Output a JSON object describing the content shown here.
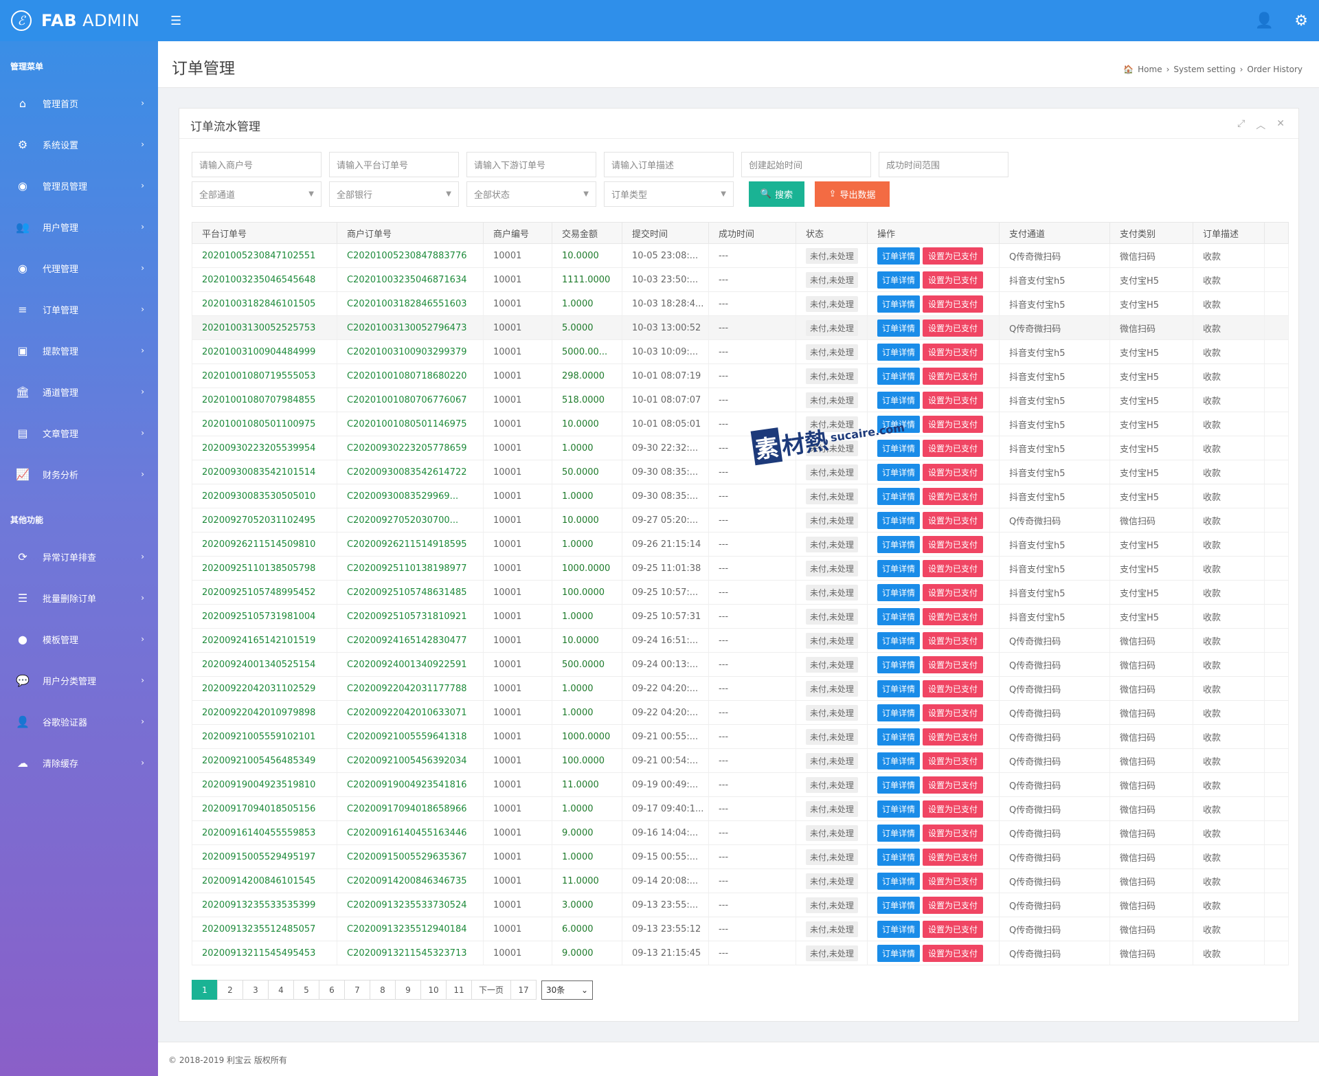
{
  "topbar": {
    "brand_bold": "FAB",
    "brand_rest": " ADMIN",
    "logo_glyph": "ℰ",
    "menu_icon": "☰",
    "user_icon": "👤",
    "settings_icon": "⚙"
  },
  "sidebar": {
    "section_main": "管理菜单",
    "section_other": "其他功能",
    "items": [
      {
        "label": "管理首页",
        "icon": "⌂"
      },
      {
        "label": "系统设置",
        "icon": "⚙"
      },
      {
        "label": "管理员管理",
        "icon": "◉"
      },
      {
        "label": "用户管理",
        "icon": "👥"
      },
      {
        "label": "代理管理",
        "icon": "◉"
      },
      {
        "label": "订单管理",
        "icon": "≡"
      },
      {
        "label": "提款管理",
        "icon": "▣"
      },
      {
        "label": "通道管理",
        "icon": "🏛"
      },
      {
        "label": "文章管理",
        "icon": "▤"
      },
      {
        "label": "财务分析",
        "icon": "📈"
      }
    ],
    "other_items": [
      {
        "label": "异常订单排查",
        "icon": "⟳"
      },
      {
        "label": "批量删除订单",
        "icon": "☰"
      },
      {
        "label": "模板管理",
        "icon": "●"
      },
      {
        "label": "用户分类管理",
        "icon": "💬"
      },
      {
        "label": "谷歌验证器",
        "icon": "👤"
      },
      {
        "label": "清除缓存",
        "icon": "☁"
      }
    ],
    "chevron": "›"
  },
  "page": {
    "title": "订单管理",
    "breadcrumb": [
      "Home",
      "System setting",
      "Order History"
    ],
    "breadcrumb_sep": "›",
    "breadcrumb_icon": "🏠"
  },
  "card": {
    "title": "订单流水管理",
    "tools": [
      "⤢",
      "︿",
      "✕"
    ]
  },
  "filters": {
    "inputs": [
      "请输入商户号",
      "请输入平台订单号",
      "请输入下游订单号",
      "请输入订单描述",
      "创建起始时间",
      "成功时间范围"
    ],
    "selects": [
      "全部通道",
      "全部银行",
      "全部状态",
      "订单类型"
    ],
    "search_label": "搜索",
    "export_label": "导出数据"
  },
  "table": {
    "headers": [
      "平台订单号",
      "商户订单号",
      "商户编号",
      "交易金额",
      "提交时间",
      "成功时间",
      "状态",
      "操作",
      "支付通道",
      "支付类别",
      "订单描述"
    ],
    "status_label": "未付,未处理",
    "detail_label": "订单详情",
    "paid_label": "设置为已支付",
    "rows": [
      [
        "20201005230847102551",
        "C20201005230847883776",
        "10001",
        "10.0000",
        "10-05 23:08:...",
        "---",
        "Q传奇微扫码",
        "微信扫码",
        "收款"
      ],
      [
        "20201003235046545648",
        "C20201003235046871634",
        "10001",
        "1111.0000",
        "10-03 23:50:...",
        "---",
        "抖音支付宝h5",
        "支付宝H5",
        "收款"
      ],
      [
        "20201003182846101505",
        "C20201003182846551603",
        "10001",
        "1.0000",
        "10-03 18:28:4...",
        "---",
        "抖音支付宝h5",
        "支付宝H5",
        "收款"
      ],
      [
        "20201003130052525753",
        "C20201003130052796473",
        "10001",
        "5.0000",
        "10-03 13:00:52",
        "---",
        "Q传奇微扫码",
        "微信扫码",
        "收款"
      ],
      [
        "20201003100904484999",
        "C20201003100903299379",
        "10001",
        "5000.00...",
        "10-03 10:09:...",
        "---",
        "抖音支付宝h5",
        "支付宝H5",
        "收款"
      ],
      [
        "20201001080719555053",
        "C20201001080718680220",
        "10001",
        "298.0000",
        "10-01 08:07:19",
        "---",
        "抖音支付宝h5",
        "支付宝H5",
        "收款"
      ],
      [
        "20201001080707984855",
        "C20201001080706776067",
        "10001",
        "518.0000",
        "10-01 08:07:07",
        "---",
        "抖音支付宝h5",
        "支付宝H5",
        "收款"
      ],
      [
        "20201001080501100975",
        "C20201001080501146975",
        "10001",
        "10.0000",
        "10-01 08:05:01",
        "---",
        "抖音支付宝h5",
        "支付宝H5",
        "收款"
      ],
      [
        "20200930223205539954",
        "C20200930223205778659",
        "10001",
        "1.0000",
        "09-30 22:32:...",
        "---",
        "抖音支付宝h5",
        "支付宝H5",
        "收款"
      ],
      [
        "20200930083542101514",
        "C20200930083542614722",
        "10001",
        "50.0000",
        "09-30 08:35:...",
        "---",
        "抖音支付宝h5",
        "支付宝H5",
        "收款"
      ],
      [
        "20200930083530505010",
        "C20200930083529969...",
        "10001",
        "1.0000",
        "09-30 08:35:...",
        "---",
        "抖音支付宝h5",
        "支付宝H5",
        "收款"
      ],
      [
        "20200927052031102495",
        "C20200927052030700...",
        "10001",
        "10.0000",
        "09-27 05:20:...",
        "---",
        "Q传奇微扫码",
        "微信扫码",
        "收款"
      ],
      [
        "20200926211514509810",
        "C20200926211514918595",
        "10001",
        "1.0000",
        "09-26 21:15:14",
        "---",
        "抖音支付宝h5",
        "支付宝H5",
        "收款"
      ],
      [
        "20200925110138505798",
        "C20200925110138198977",
        "10001",
        "1000.0000",
        "09-25 11:01:38",
        "---",
        "抖音支付宝h5",
        "支付宝H5",
        "收款"
      ],
      [
        "20200925105748995452",
        "C20200925105748631485",
        "10001",
        "100.0000",
        "09-25 10:57:...",
        "---",
        "抖音支付宝h5",
        "支付宝H5",
        "收款"
      ],
      [
        "20200925105731981004",
        "C20200925105731810921",
        "10001",
        "1.0000",
        "09-25 10:57:31",
        "---",
        "抖音支付宝h5",
        "支付宝H5",
        "收款"
      ],
      [
        "20200924165142101519",
        "C20200924165142830477",
        "10001",
        "10.0000",
        "09-24 16:51:...",
        "---",
        "Q传奇微扫码",
        "微信扫码",
        "收款"
      ],
      [
        "20200924001340525154",
        "C20200924001340922591",
        "10001",
        "500.0000",
        "09-24 00:13:...",
        "---",
        "Q传奇微扫码",
        "微信扫码",
        "收款"
      ],
      [
        "20200922042031102529",
        "C20200922042031177788",
        "10001",
        "1.0000",
        "09-22 04:20:...",
        "---",
        "Q传奇微扫码",
        "微信扫码",
        "收款"
      ],
      [
        "20200922042010979898",
        "C20200922042010633071",
        "10001",
        "1.0000",
        "09-22 04:20:...",
        "---",
        "Q传奇微扫码",
        "微信扫码",
        "收款"
      ],
      [
        "20200921005559102101",
        "C20200921005559641318",
        "10001",
        "1000.0000",
        "09-21 00:55:...",
        "---",
        "Q传奇微扫码",
        "微信扫码",
        "收款"
      ],
      [
        "20200921005456485349",
        "C20200921005456392034",
        "10001",
        "100.0000",
        "09-21 00:54:...",
        "---",
        "Q传奇微扫码",
        "微信扫码",
        "收款"
      ],
      [
        "20200919004923519810",
        "C20200919004923541816",
        "10001",
        "11.0000",
        "09-19 00:49:...",
        "---",
        "Q传奇微扫码",
        "微信扫码",
        "收款"
      ],
      [
        "20200917094018505156",
        "C20200917094018658966",
        "10001",
        "1.0000",
        "09-17 09:40:1...",
        "---",
        "Q传奇微扫码",
        "微信扫码",
        "收款"
      ],
      [
        "20200916140455559853",
        "C20200916140455163446",
        "10001",
        "9.0000",
        "09-16 14:04:...",
        "---",
        "Q传奇微扫码",
        "微信扫码",
        "收款"
      ],
      [
        "20200915005529495197",
        "C20200915005529635367",
        "10001",
        "1.0000",
        "09-15 00:55:...",
        "---",
        "Q传奇微扫码",
        "微信扫码",
        "收款"
      ],
      [
        "20200914200846101545",
        "C20200914200846346735",
        "10001",
        "11.0000",
        "09-14 20:08:...",
        "---",
        "Q传奇微扫码",
        "微信扫码",
        "收款"
      ],
      [
        "20200913235533535399",
        "C20200913235533730524",
        "10001",
        "3.0000",
        "09-13 23:55:...",
        "---",
        "Q传奇微扫码",
        "微信扫码",
        "收款"
      ],
      [
        "20200913235512485057",
        "C20200913235512940184",
        "10001",
        "6.0000",
        "09-13 23:55:12",
        "---",
        "Q传奇微扫码",
        "微信扫码",
        "收款"
      ],
      [
        "20200913211545495453",
        "C20200913211545323713",
        "10001",
        "9.0000",
        "09-13 21:15:45",
        "---",
        "Q传奇微扫码",
        "微信扫码",
        "收款"
      ]
    ]
  },
  "pager": {
    "pages": [
      "1",
      "2",
      "3",
      "4",
      "5",
      "6",
      "7",
      "8",
      "9",
      "10",
      "11"
    ],
    "next_label": "下一页",
    "last_page": "17",
    "page_size": "30条"
  },
  "footer": {
    "text": "© 2018-2019 利宝云 版权所有"
  },
  "watermark": {
    "box": "素",
    "text": "材熱",
    "url": "sucaire.com"
  }
}
